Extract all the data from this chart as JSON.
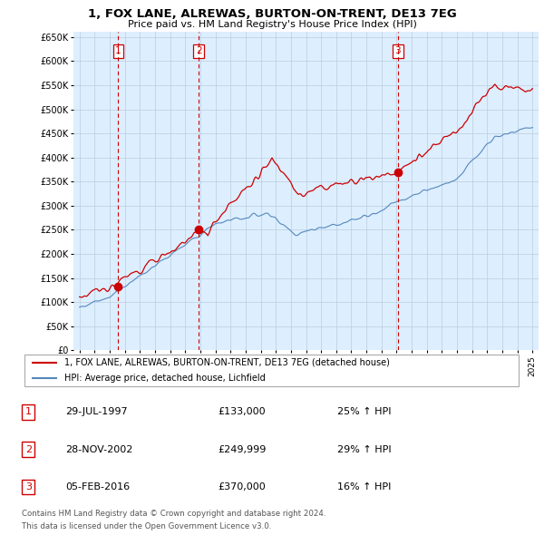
{
  "title_line1": "1, FOX LANE, ALREWAS, BURTON-ON-TRENT, DE13 7EG",
  "title_line2": "Price paid vs. HM Land Registry's House Price Index (HPI)",
  "ylabel_ticks": [
    "£0",
    "£50K",
    "£100K",
    "£150K",
    "£200K",
    "£250K",
    "£300K",
    "£350K",
    "£400K",
    "£450K",
    "£500K",
    "£550K",
    "£600K",
    "£650K"
  ],
  "ytick_values": [
    0,
    50000,
    100000,
    150000,
    200000,
    250000,
    300000,
    350000,
    400000,
    450000,
    500000,
    550000,
    600000,
    650000
  ],
  "ylim": [
    0,
    660000
  ],
  "xlim_start": 1994.6,
  "xlim_end": 2025.4,
  "xtick_years": [
    1995,
    1996,
    1997,
    1998,
    1999,
    2000,
    2001,
    2002,
    2003,
    2004,
    2005,
    2006,
    2007,
    2008,
    2009,
    2010,
    2011,
    2012,
    2013,
    2014,
    2015,
    2016,
    2017,
    2018,
    2019,
    2020,
    2021,
    2022,
    2023,
    2024,
    2025
  ],
  "sale_dates": [
    1997.57,
    2002.91,
    2016.09
  ],
  "sale_prices": [
    133000,
    249999,
    370000
  ],
  "sale_labels": [
    "1",
    "2",
    "3"
  ],
  "vline_color": "#cc0000",
  "sale_marker_color": "#cc0000",
  "legend_line1": "1, FOX LANE, ALREWAS, BURTON-ON-TRENT, DE13 7EG (detached house)",
  "legend_line2": "HPI: Average price, detached house, Lichfield",
  "table_rows": [
    [
      "1",
      "29-JUL-1997",
      "£133,000",
      "25% ↑ HPI"
    ],
    [
      "2",
      "28-NOV-2002",
      "£249,999",
      "29% ↑ HPI"
    ],
    [
      "3",
      "05-FEB-2016",
      "£370,000",
      "16% ↑ HPI"
    ]
  ],
  "footnote_line1": "Contains HM Land Registry data © Crown copyright and database right 2024.",
  "footnote_line2": "This data is licensed under the Open Government Licence v3.0.",
  "hpi_color": "#5588bb",
  "price_color": "#cc0000",
  "grid_color": "#bbccdd",
  "plot_bg_color": "#ddeeff",
  "fig_bg_color": "#ffffff"
}
